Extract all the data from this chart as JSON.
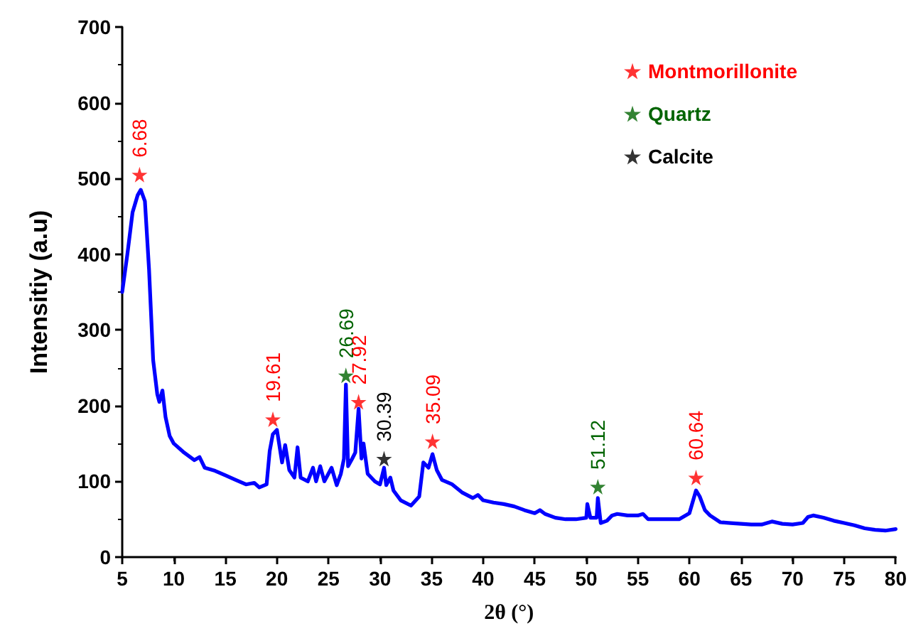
{
  "chart_data": {
    "type": "line",
    "xlabel": "2θ (°)",
    "ylabel": "Intensitiy (a.u)",
    "xlim": [
      5,
      80
    ],
    "xticks": [
      5,
      10,
      15,
      20,
      25,
      30,
      35,
      40,
      45,
      50,
      55,
      60,
      65,
      70,
      75,
      80
    ],
    "ylim": [
      0,
      700
    ],
    "yticks": [
      0,
      100,
      200,
      300,
      400,
      500,
      600,
      700
    ],
    "grid": false,
    "legend": "top right",
    "annotations": [
      {
        "text": "6.68",
        "x": 6.68,
        "y": 505
      },
      {
        "text": "19.61",
        "x": 19.61,
        "y": 182
      },
      {
        "text": "26.69",
        "x": 26.69,
        "y": 240
      },
      {
        "text": "27.92",
        "x": 27.92,
        "y": 205
      },
      {
        "text": "30.39",
        "x": 30.39,
        "y": 130
      },
      {
        "text": "35.09",
        "x": 35.09,
        "y": 153
      },
      {
        "text": "51.12",
        "x": 51.12,
        "y": 93
      },
      {
        "text": "60.64",
        "x": 60.64,
        "y": 105
      }
    ],
    "series": [
      {
        "color": "#0000ff",
        "marker": "none",
        "x": [
          5,
          5.5,
          6,
          6.5,
          6.8,
          7.2,
          7.6,
          8,
          8.4,
          8.6,
          8.9,
          9.2,
          9.6,
          10,
          11,
          12,
          12.5,
          13,
          14,
          15,
          16,
          17,
          17.8,
          18.3,
          19,
          19.3,
          19.6,
          20,
          20.5,
          20.8,
          21.2,
          21.7,
          22,
          22.3,
          23,
          23.5,
          23.8,
          24.2,
          24.6,
          25.3,
          25.8,
          26.2,
          26.5,
          26.69,
          26.9,
          27.3,
          27.6,
          27.92,
          28.2,
          28.4,
          28.8,
          29.5,
          30,
          30.39,
          30.6,
          31,
          31.3,
          32,
          33,
          33.8,
          34.2,
          34.7,
          35.09,
          35.5,
          36,
          37,
          38,
          39,
          39.5,
          40,
          41,
          42,
          43,
          44,
          45,
          45.5,
          46,
          47,
          48,
          49,
          50,
          50.1,
          50.4,
          51,
          51.12,
          51.4,
          52,
          52.5,
          53,
          54,
          55,
          55.5,
          56,
          57,
          58,
          59,
          60,
          60.64,
          61,
          61.5,
          62,
          63,
          64,
          65,
          66,
          67,
          68,
          69,
          70,
          71,
          71.5,
          72,
          73,
          74,
          75,
          76,
          77,
          78,
          79,
          80
        ],
        "values": [
          350,
          400,
          455,
          478,
          485,
          470,
          380,
          260,
          215,
          205,
          220,
          185,
          160,
          150,
          138,
          128,
          132,
          118,
          114,
          108,
          102,
          96,
          98,
          92,
          96,
          140,
          162,
          168,
          125,
          148,
          115,
          105,
          145,
          105,
          100,
          118,
          100,
          120,
          100,
          118,
          95,
          110,
          130,
          228,
          120,
          130,
          138,
          196,
          130,
          150,
          110,
          100,
          96,
          118,
          95,
          105,
          88,
          75,
          68,
          80,
          125,
          118,
          136,
          115,
          102,
          96,
          85,
          78,
          82,
          75,
          72,
          70,
          67,
          62,
          58,
          62,
          57,
          52,
          50,
          50,
          52,
          70,
          52,
          52,
          78,
          45,
          48,
          55,
          57,
          55,
          55,
          57,
          50,
          50,
          50,
          50,
          58,
          88,
          80,
          62,
          55,
          46,
          45,
          44,
          43,
          43,
          47,
          44,
          43,
          45,
          53,
          55,
          52,
          48,
          45,
          42,
          38,
          36,
          35,
          37
        ]
      },
      {
        "type": "scatter",
        "name": "Montmorillonite",
        "color": "#ff0000",
        "marker": "star",
        "x": [
          6.68,
          19.61,
          27.92,
          35.09,
          60.64
        ],
        "values": [
          505,
          182,
          205,
          153,
          105
        ]
      },
      {
        "type": "scatter",
        "name": "Quartz",
        "color": "#006400",
        "marker": "star",
        "x": [
          26.69,
          51.12
        ],
        "values": [
          240,
          93
        ]
      },
      {
        "type": "scatter",
        "name": "Calcite",
        "color": "#000000",
        "marker": "star",
        "x": [
          30.39
        ],
        "values": [
          130
        ]
      }
    ]
  }
}
